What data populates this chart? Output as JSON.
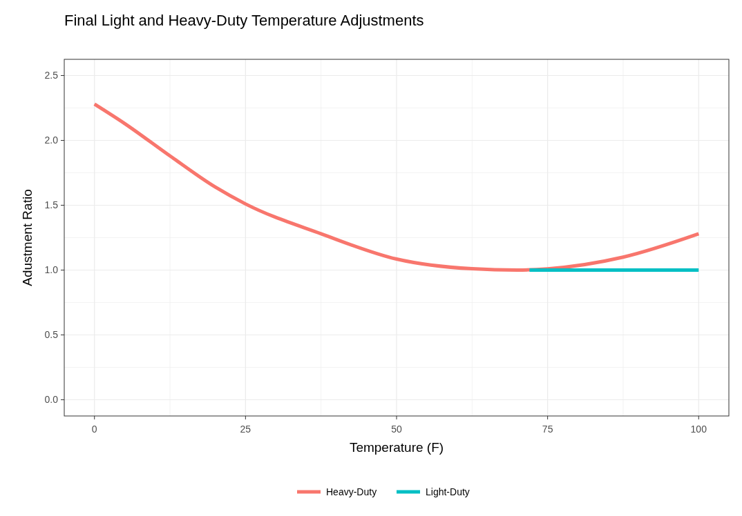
{
  "chart_data": {
    "type": "line",
    "title": "Final Light and Heavy-Duty Temperature Adjustments",
    "xlabel": "Temperature (F)",
    "ylabel": "Adustment Ratio",
    "xlim": [
      -5,
      105
    ],
    "ylim": [
      -0.125,
      2.625
    ],
    "xticks": [
      0,
      {
        "value": 12.5,
        "label": null
      },
      25,
      {
        "value": 37.5,
        "label": null
      },
      50,
      {
        "value": 62.5,
        "label": null
      },
      75,
      {
        "value": 87.5,
        "label": null
      },
      100
    ],
    "yticks": [
      {
        "value": 0,
        "label": "0.0"
      },
      {
        "value": 0.25,
        "label": null
      },
      0.5,
      {
        "value": 0.75,
        "label": null
      },
      {
        "value": 1,
        "label": "1.0"
      },
      {
        "value": 1.25,
        "label": null
      },
      1.5,
      {
        "value": 1.75,
        "label": null
      },
      {
        "value": 2,
        "label": "2.0"
      },
      {
        "value": 2.25,
        "label": null
      },
      2.5
    ],
    "grid": true,
    "legend": "bottom",
    "line_style": "solid",
    "series": [
      {
        "name": "Heavy-Duty",
        "color": "#f8766d",
        "x": [
          0,
          5,
          12.5,
          20,
          25,
          37.5,
          50,
          62.5,
          70,
          75,
          87.5,
          100
        ],
        "values": [
          2.28,
          2.13,
          1.88,
          1.64,
          1.51,
          1.28,
          1.085,
          1.01,
          1.0,
          1.01,
          1.1,
          1.28
        ]
      },
      {
        "name": "Light-Duty",
        "color": "#00bfc4",
        "x": [
          72,
          100
        ],
        "values": [
          1.0,
          1.0
        ]
      }
    ]
  }
}
